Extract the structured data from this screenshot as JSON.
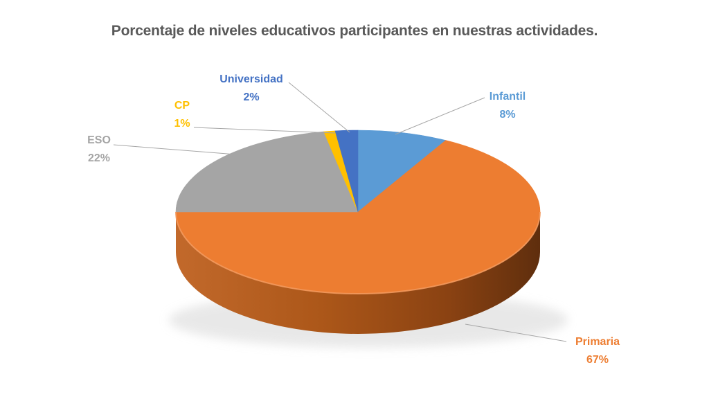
{
  "title": "Porcentaje de niveles educativos participantes en nuestras actividades.",
  "title_color": "#595959",
  "background_color": "#FFFFFF",
  "chart_data": {
    "type": "pie",
    "style": "3d-pie",
    "title": "Porcentaje de niveles educativos participantes en nuestras actividades.",
    "legend": "none",
    "direction": "clockwise",
    "start_angle_deg": 0,
    "labels_format": "category name + percent, outside with leader lines",
    "leader_line_color": "#A6A6A6",
    "categories": [
      "Infantil",
      "Primaria",
      "ESO",
      "CP",
      "Universidad"
    ],
    "values": [
      8,
      67,
      22,
      1,
      2
    ],
    "slices": [
      {
        "name": "Infantil",
        "value": 8,
        "label": "8%",
        "color": "#5B9BD5"
      },
      {
        "name": "Primaria",
        "value": 67,
        "label": "67%",
        "color": "#ED7D31"
      },
      {
        "name": "ESO",
        "value": 22,
        "label": "22%",
        "color": "#A5A5A5"
      },
      {
        "name": "CP",
        "value": 1,
        "label": "1%",
        "color": "#FFC000"
      },
      {
        "name": "Universidad",
        "value": 2,
        "label": "2%",
        "color": "#4472C4"
      }
    ],
    "side_colors": [
      "#C2692B",
      "#AC5719",
      "#8A4212",
      "#5F2E0D"
    ]
  }
}
